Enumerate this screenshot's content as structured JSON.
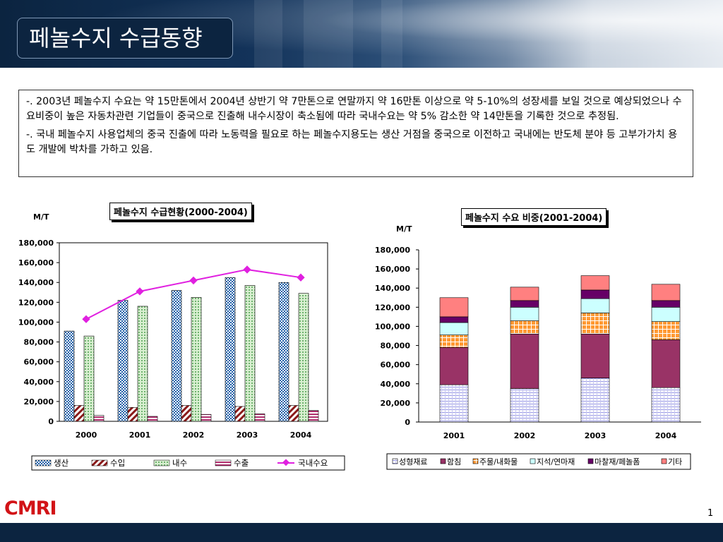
{
  "slide": {
    "title": "페놀수지 수급동향",
    "paragraph1": "-. 2003년 페놀수지 수요는 약 15만톤에서 2004년 상반기 약 7만톤으로 연말까지 약 16만톤 이상으로 약 5-10%의 성장세를 보일 것으로 예상되었으나  수요비중이 높은 자동차관련 기업들이 중국으로 진출해 내수시장이 축소됨에 따라 국내수요는 약 5% 감소한 약 14만톤을 기록한 것으로 추정됨.",
    "paragraph2": "-. 국내 페놀수지 사용업체의 중국 진출에 따라 노동력을 필요로 하는 페놀수지용도는 생산 거점을 중국으로 이전하고 국내에는 반도체 분야 등 고부가가치 용도 개발에 박차를 가하고 있음.",
    "logo": "CMRI",
    "page_number": "1"
  },
  "chart_data": [
    {
      "type": "bar",
      "title": "페놀수지 수급현황(2000-2004)",
      "ylabel": "M/T",
      "categories": [
        "2000",
        "2001",
        "2002",
        "2003",
        "2004"
      ],
      "ylim": [
        0,
        180000
      ],
      "yticks": [
        "0",
        "20,000",
        "40,000",
        "60,000",
        "80,000",
        "100,000",
        "120,000",
        "140,000",
        "160,000",
        "180,000"
      ],
      "series": [
        {
          "name": "생산",
          "kind": "bar",
          "values": [
            91000,
            122000,
            132000,
            145000,
            140000
          ],
          "color": "#1f5fa8"
        },
        {
          "name": "수입",
          "kind": "bar",
          "values": [
            16000,
            14000,
            16000,
            15000,
            16000
          ],
          "color": "#8b1a1a"
        },
        {
          "name": "내수",
          "kind": "bar",
          "values": [
            86000,
            116000,
            125000,
            137000,
            129000
          ],
          "color": "#3f8f3f"
        },
        {
          "name": "수출",
          "kind": "bar",
          "values": [
            6000,
            5000,
            7000,
            7500,
            11000
          ],
          "color": "#b0306e"
        },
        {
          "name": "국내수요",
          "kind": "line",
          "values": [
            103000,
            131000,
            142000,
            153000,
            145000
          ],
          "color": "#e020e0"
        }
      ],
      "grid": false,
      "legend": "bottom"
    },
    {
      "type": "bar",
      "stacked": true,
      "title": "페놀수지 수요 비중(2001-2004)",
      "ylabel": "M/T",
      "categories": [
        "2001",
        "2002",
        "2003",
        "2004"
      ],
      "ylim": [
        0,
        180000
      ],
      "yticks": [
        "0",
        "20,000",
        "40,000",
        "60,000",
        "80,000",
        "100,000",
        "120,000",
        "140,000",
        "160,000",
        "180,000"
      ],
      "series": [
        {
          "name": "성형재료",
          "values": [
            39000,
            35000,
            46000,
            36000
          ],
          "color": "#9a9ae6"
        },
        {
          "name": "함침",
          "values": [
            39000,
            57000,
            46000,
            50000
          ],
          "color": "#993366"
        },
        {
          "name": "주물/내화물",
          "values": [
            13000,
            14000,
            22000,
            19000
          ],
          "color": "#ff9933"
        },
        {
          "name": "지석/연마재",
          "values": [
            13000,
            14000,
            15000,
            15000
          ],
          "color": "#ccffff"
        },
        {
          "name": "마찰재/페놀폼",
          "values": [
            6000,
            7000,
            9000,
            7000
          ],
          "color": "#660066"
        },
        {
          "name": "기타",
          "values": [
            20000,
            14000,
            15000,
            17000
          ],
          "color": "#ff8080"
        }
      ],
      "grid": false,
      "legend": "bottom"
    }
  ]
}
